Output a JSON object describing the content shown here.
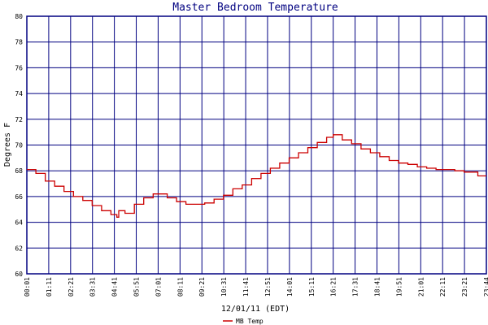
{
  "chart_data": {
    "type": "line",
    "title": "Master Bedroom Temperature",
    "xlabel": "12/01/11 (EDT)",
    "ylabel": "Degrees F",
    "ylim": [
      60,
      80
    ],
    "y_ticks": [
      "60",
      "62",
      "64",
      "66",
      "68",
      "70",
      "72",
      "74",
      "76",
      "78",
      "80"
    ],
    "x_ticks": [
      "00:01",
      "01:11",
      "02:21",
      "03:31",
      "04:41",
      "05:51",
      "07:01",
      "08:11",
      "09:21",
      "10:31",
      "11:41",
      "12:51",
      "14:01",
      "15:11",
      "16:21",
      "17:31",
      "18:41",
      "19:51",
      "21:01",
      "22:11",
      "23:21",
      "23:44"
    ],
    "grid": true,
    "legend_position": "bottom",
    "colors": {
      "line": "#cc0000",
      "grid": "#000080",
      "background": "#ffffff",
      "title": "#000080"
    },
    "series": [
      {
        "name": "MB Temp",
        "x": [
          "00:01",
          "00:30",
          "01:00",
          "01:30",
          "02:00",
          "02:30",
          "03:00",
          "03:30",
          "04:00",
          "04:30",
          "04:49",
          "04:55",
          "05:15",
          "05:45",
          "06:15",
          "06:45",
          "07:01",
          "07:30",
          "08:00",
          "08:30",
          "09:00",
          "09:30",
          "10:00",
          "10:30",
          "11:00",
          "11:30",
          "12:00",
          "12:30",
          "13:00",
          "13:30",
          "14:00",
          "14:30",
          "15:00",
          "15:30",
          "16:00",
          "16:21",
          "16:50",
          "17:20",
          "17:50",
          "18:20",
          "18:50",
          "19:20",
          "19:50",
          "20:20",
          "20:50",
          "21:20",
          "21:50",
          "22:20",
          "22:50",
          "23:20",
          "23:35",
          "23:44"
        ],
        "values": [
          68.1,
          67.8,
          67.2,
          66.8,
          66.4,
          66.0,
          65.7,
          65.3,
          64.9,
          64.6,
          64.4,
          64.9,
          64.7,
          65.4,
          65.9,
          66.2,
          66.2,
          65.9,
          65.6,
          65.4,
          65.4,
          65.5,
          65.8,
          66.1,
          66.6,
          66.9,
          67.4,
          67.8,
          68.2,
          68.6,
          69.0,
          69.4,
          69.8,
          70.2,
          70.6,
          70.8,
          70.4,
          70.1,
          69.7,
          69.4,
          69.1,
          68.8,
          68.6,
          68.5,
          68.3,
          68.2,
          68.1,
          68.1,
          68.0,
          67.9,
          67.6,
          67.6
        ]
      }
    ]
  }
}
